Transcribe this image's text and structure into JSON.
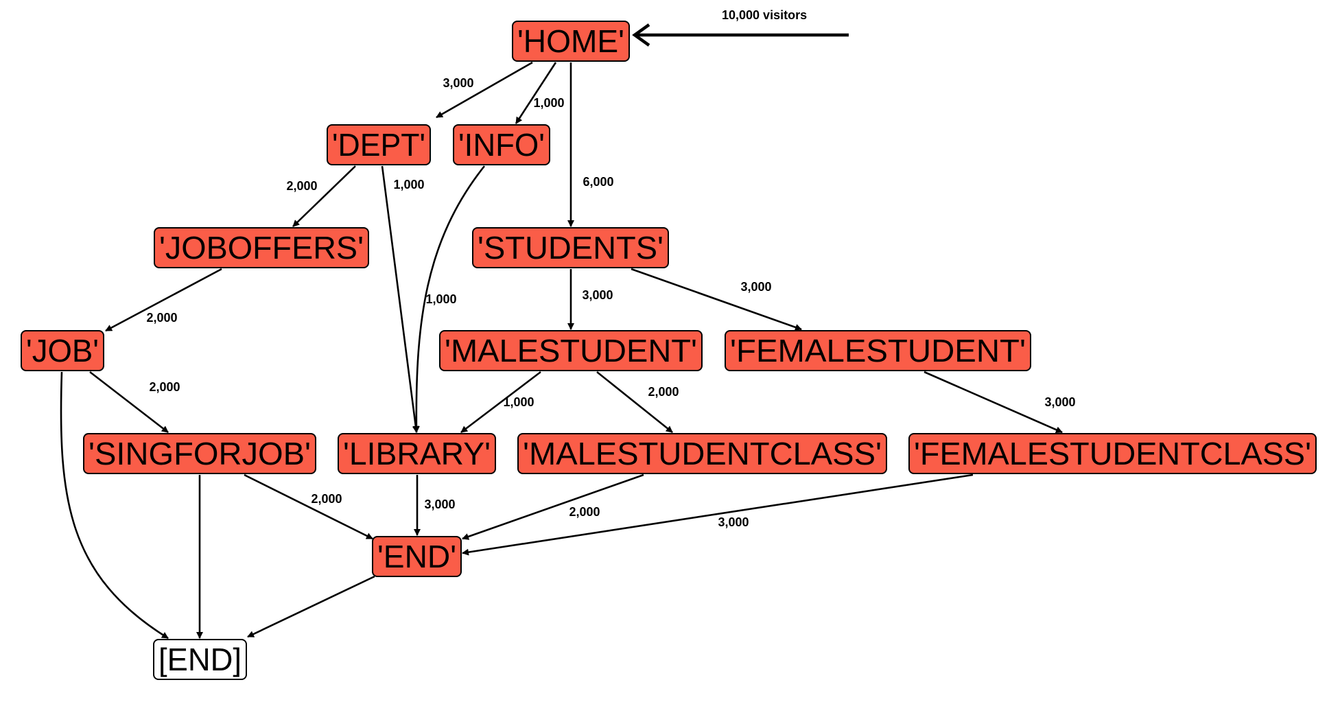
{
  "diagram": {
    "colors": {
      "node_fill": "#fa5d48",
      "end_fill": "#ffffff",
      "stroke": "#000000"
    },
    "entry_label": "10,000 visitors",
    "nodes": [
      {
        "id": "home",
        "label": "'HOME'"
      },
      {
        "id": "dept",
        "label": "'DEPT'"
      },
      {
        "id": "info",
        "label": "'INFO'"
      },
      {
        "id": "joboffers",
        "label": "'JOBOFFERS'"
      },
      {
        "id": "students",
        "label": "'STUDENTS'"
      },
      {
        "id": "job",
        "label": "'JOB'"
      },
      {
        "id": "malestudent",
        "label": "'MALESTUDENT'"
      },
      {
        "id": "femalestudent",
        "label": "'FEMALESTUDENT'"
      },
      {
        "id": "singforjob",
        "label": "'SINGFORJOB'"
      },
      {
        "id": "library",
        "label": "'LIBRARY'"
      },
      {
        "id": "malestudentclass",
        "label": "'MALESTUDENTCLASS'"
      },
      {
        "id": "femalestudentclass",
        "label": "'FEMALESTUDENTCLASS'"
      },
      {
        "id": "end_q",
        "label": "'END'"
      },
      {
        "id": "end_final",
        "label": "[END]"
      }
    ],
    "edges": [
      {
        "from": "home",
        "to": "dept",
        "label": "3,000"
      },
      {
        "from": "home",
        "to": "info",
        "label": "1,000"
      },
      {
        "from": "home",
        "to": "students",
        "label": "6,000"
      },
      {
        "from": "dept",
        "to": "joboffers",
        "label": "2,000"
      },
      {
        "from": "dept",
        "to": "library",
        "label": "1,000"
      },
      {
        "from": "info",
        "to": "library",
        "label": "1,000"
      },
      {
        "from": "joboffers",
        "to": "job",
        "label": "2,000"
      },
      {
        "from": "students",
        "to": "malestudent",
        "label": "3,000"
      },
      {
        "from": "students",
        "to": "femalestudent",
        "label": "3,000"
      },
      {
        "from": "job",
        "to": "singforjob",
        "label": "2,000"
      },
      {
        "from": "job",
        "to": "end_final",
        "label": ""
      },
      {
        "from": "malestudent",
        "to": "library",
        "label": "1,000"
      },
      {
        "from": "malestudent",
        "to": "malestudentclass",
        "label": "2,000"
      },
      {
        "from": "femalestudent",
        "to": "femalestudentclass",
        "label": "3,000"
      },
      {
        "from": "singforjob",
        "to": "end_q",
        "label": "2,000"
      },
      {
        "from": "singforjob",
        "to": "end_final",
        "label": ""
      },
      {
        "from": "library",
        "to": "end_q",
        "label": "3,000"
      },
      {
        "from": "malestudentclass",
        "to": "end_q",
        "label": "2,000"
      },
      {
        "from": "femalestudentclass",
        "to": "end_q",
        "label": "3,000"
      },
      {
        "from": "end_q",
        "to": "end_final",
        "label": ""
      }
    ]
  }
}
